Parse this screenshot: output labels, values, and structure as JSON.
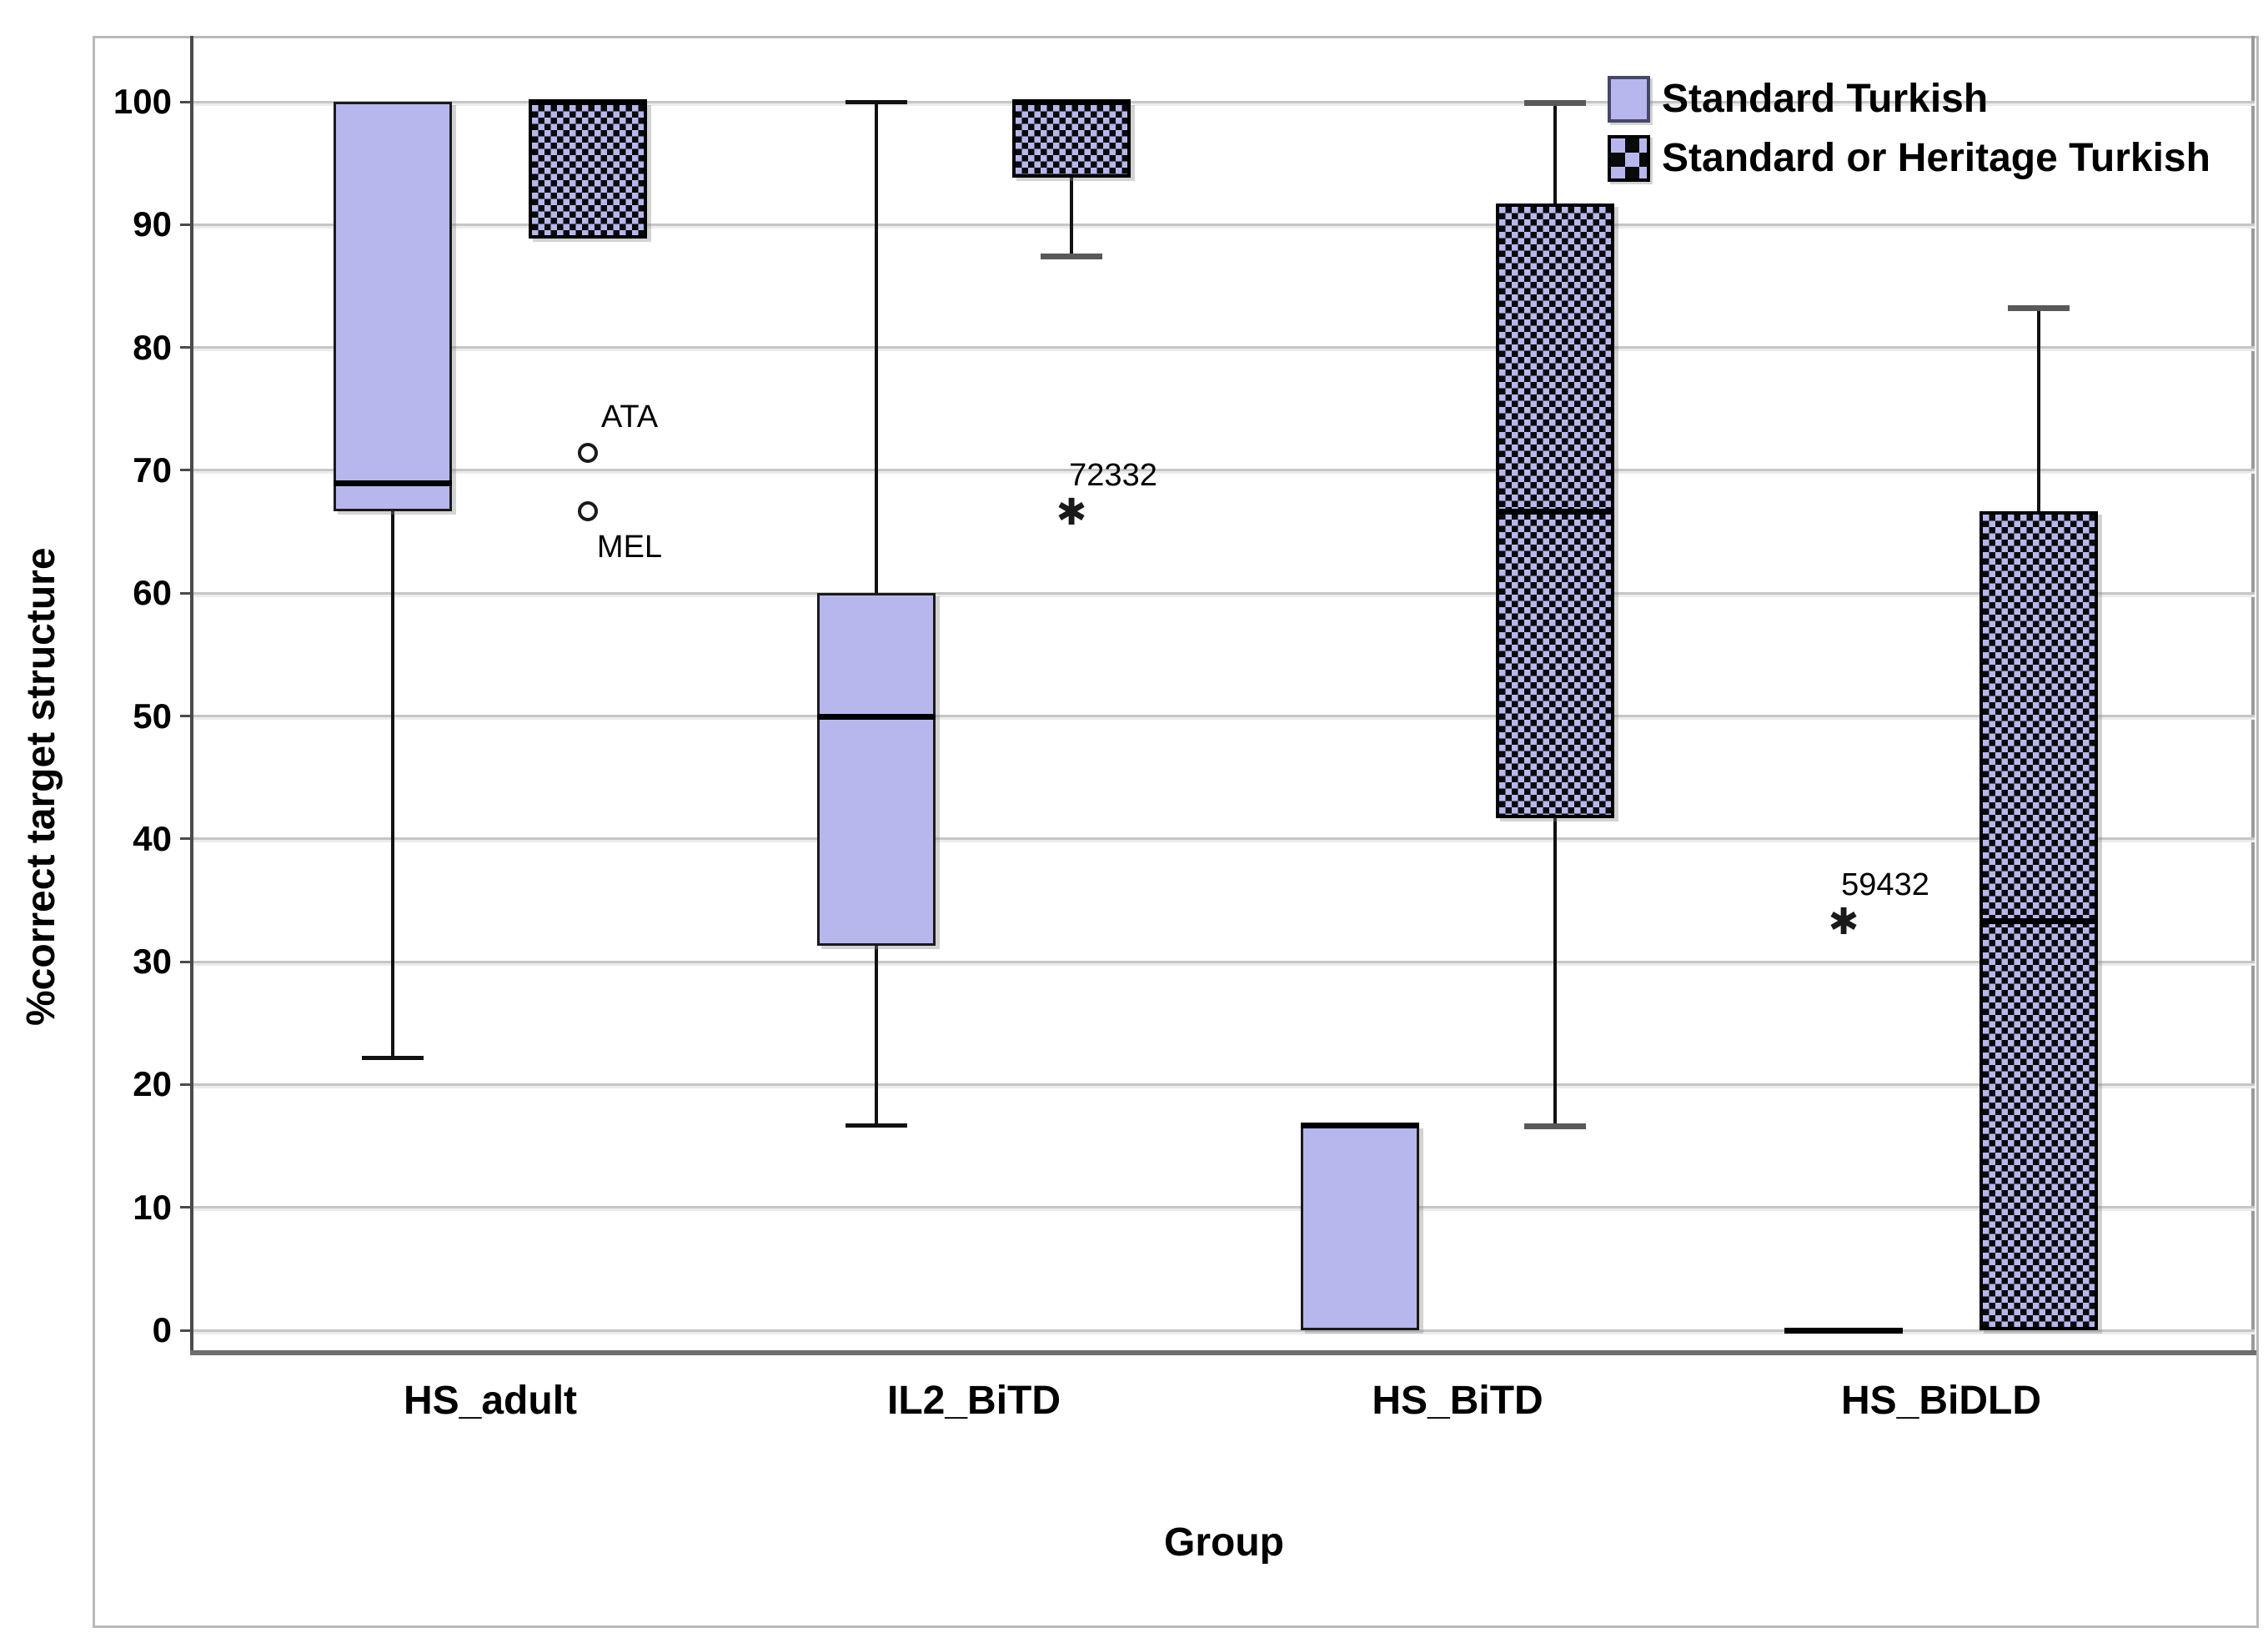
{
  "legend": {
    "items": [
      {
        "label": "Standard Turkish",
        "swatch": "solid"
      },
      {
        "label": "Standard or Heritage Turkish",
        "swatch": "checker"
      }
    ]
  },
  "axes": {
    "y_title": "%correct target structure",
    "x_title": "Group",
    "y_ticks": [
      0,
      10,
      20,
      30,
      40,
      50,
      60,
      70,
      80,
      90,
      100
    ],
    "x_categories": [
      "HS_adult",
      "IL2_BiTD",
      "HS_BiTD",
      "HS_BiDLD"
    ]
  },
  "colors": {
    "box_fill": "#b7b7ee",
    "checker_dark": "#0a0a0a",
    "gridline": "#c6c6c6",
    "median": "#000000",
    "whisker": "#111111"
  },
  "chart_data": {
    "type": "boxplot",
    "title": "",
    "xlabel": "Group",
    "ylabel": "%correct target structure",
    "ylim": [
      0,
      100
    ],
    "grid": "horizontal",
    "legend_position": "top-right-inside",
    "categories": [
      "HS_adult",
      "IL2_BiTD",
      "HS_BiTD",
      "HS_BiDLD"
    ],
    "series": [
      {
        "name": "Standard Turkish",
        "style": "solid",
        "boxes": [
          {
            "category": "HS_adult",
            "q1": 66.7,
            "median": 69,
            "q3": 100,
            "whisker_low": 22.2,
            "whisker_high": null,
            "outliers": []
          },
          {
            "category": "IL2_BiTD",
            "q1": 31.3,
            "median": 50,
            "q3": 60,
            "whisker_low": 16.7,
            "whisker_high": 100,
            "outliers": []
          },
          {
            "category": "HS_BiTD",
            "q1": 0,
            "median": 16.7,
            "q3": 16.7,
            "whisker_low": null,
            "whisker_high": null,
            "outliers": []
          },
          {
            "category": "HS_BiDLD",
            "q1": 0,
            "median": 0,
            "q3": 0,
            "whisker_low": null,
            "whisker_high": null,
            "outliers": [
              {
                "label": "59432",
                "value": 33.3,
                "marker": "asterisk",
                "label_pos": "above"
              }
            ]
          }
        ]
      },
      {
        "name": "Standard or Heritage Turkish",
        "style": "checker",
        "boxes": [
          {
            "category": "HS_adult",
            "q1": 88.9,
            "median": 100,
            "q3": 100,
            "whisker_low": null,
            "whisker_high": null,
            "outliers": [
              {
                "label": "ATA",
                "value": 71.4,
                "marker": "circle",
                "label_pos": "above"
              },
              {
                "label": "MEL",
                "value": 66.7,
                "marker": "circle",
                "label_pos": "below"
              }
            ]
          },
          {
            "category": "IL2_BiTD",
            "q1": 93.8,
            "median": 100,
            "q3": 100,
            "whisker_low": 87.5,
            "whisker_high": null,
            "outliers": [
              {
                "label": "72332",
                "value": 66.7,
                "marker": "asterisk",
                "label_pos": "above"
              }
            ]
          },
          {
            "category": "HS_BiTD",
            "q1": 41.7,
            "median": 66.7,
            "q3": 91.7,
            "whisker_low": 16.7,
            "whisker_high": 100,
            "outliers": []
          },
          {
            "category": "HS_BiDLD",
            "q1": 0,
            "median": 33.3,
            "q3": 66.7,
            "whisker_low": null,
            "whisker_high": 83.3,
            "outliers": []
          }
        ]
      }
    ]
  }
}
